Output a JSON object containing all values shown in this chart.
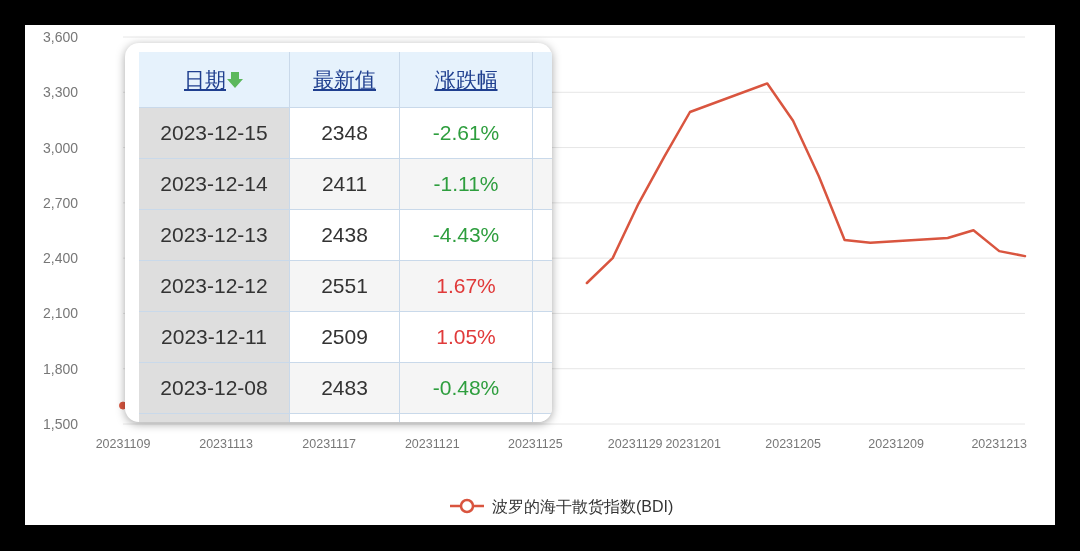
{
  "chart_data": [
    {
      "type": "line",
      "x": [
        "2023-11-09",
        "2023-11-10",
        "2023-11-13",
        "2023-11-14",
        "2023-11-15",
        "2023-11-16",
        "2023-11-17",
        "2023-11-20",
        "2023-11-21",
        "2023-11-22",
        "2023-11-23",
        "2023-11-24",
        "2023-11-27",
        "2023-11-28",
        "2023-11-29",
        "2023-11-30",
        "2023-12-01",
        "2023-12-04",
        "2023-12-05",
        "2023-12-06",
        "2023-12-07",
        "2023-12-08",
        "2023-12-11",
        "2023-12-12",
        "2023-12-13",
        "2023-12-14"
      ],
      "series": [
        {
          "name": "波罗的海干散货指数(BDI)",
          "color": "#d9553f",
          "values": [
            1600,
            null,
            null,
            null,
            null,
            null,
            null,
            null,
            null,
            null,
            null,
            null,
            2265,
            2400,
            2695,
            2950,
            3193,
            3348,
            3146,
            2844,
            2498,
            2483,
            2509,
            2551,
            2438,
            2411
          ]
        }
      ],
      "xlim": [
        "2023-11-09",
        "2023-12-14"
      ],
      "xticks": [
        {
          "value": "2023-11-09",
          "label": "20231109"
        },
        {
          "value": "2023-11-13",
          "label": "20231113"
        },
        {
          "value": "2023-11-17",
          "label": "20231117"
        },
        {
          "value": "2023-11-21",
          "label": "20231121"
        },
        {
          "value": "2023-11-25",
          "label": "20231125"
        },
        {
          "value": "2023-11-29",
          "label": "20231129"
        },
        {
          "value": "2023-12-01",
          "label": "20231201"
        },
        {
          "value": "2023-12-05",
          "label": "20231205"
        },
        {
          "value": "2023-12-09",
          "label": "20231209"
        },
        {
          "value": "2023-12-13",
          "label": "20231213"
        }
      ],
      "ylim": [
        1500,
        3600
      ],
      "yticks": [
        {
          "value": 1500,
          "label": "1,500"
        },
        {
          "value": 1800,
          "label": "1,800"
        },
        {
          "value": 2100,
          "label": "2,100"
        },
        {
          "value": 2400,
          "label": "2,400"
        },
        {
          "value": 2700,
          "label": "2,700"
        },
        {
          "value": 3000,
          "label": "3,000"
        },
        {
          "value": 3300,
          "label": "3,300"
        },
        {
          "value": 3600,
          "label": "3,600"
        }
      ],
      "grid": "y",
      "legend": "bottom",
      "line_style": "solid"
    },
    {
      "type": "other",
      "annotations": [
        "日期",
        "最新值",
        "涨跌幅",
        "2023-12-15",
        "2348",
        "-2.61%",
        "2023-12-14",
        "2411",
        "-1.11%",
        "2023-12-13",
        "2438",
        "-4.43%",
        "2023-12-12",
        "2551",
        "1.67%",
        "2023-12-11",
        "2509",
        "1.05%",
        "2023-12-08",
        "2483",
        "-0.48%"
      ],
      "colors": [
        "#1f3f8f",
        "#1f3f8f",
        "#1f3f8f",
        "#333333",
        "#333333",
        "#2e9e3e",
        "#333333",
        "#333333",
        "#2e9e3e",
        "#333333",
        "#333333",
        "#2e9e3e",
        "#333333",
        "#333333",
        "#e03a3a",
        "#333333",
        "#333333",
        "#e03a3a",
        "#333333",
        "#333333",
        "#2e9e3e"
      ]
    }
  ]
}
